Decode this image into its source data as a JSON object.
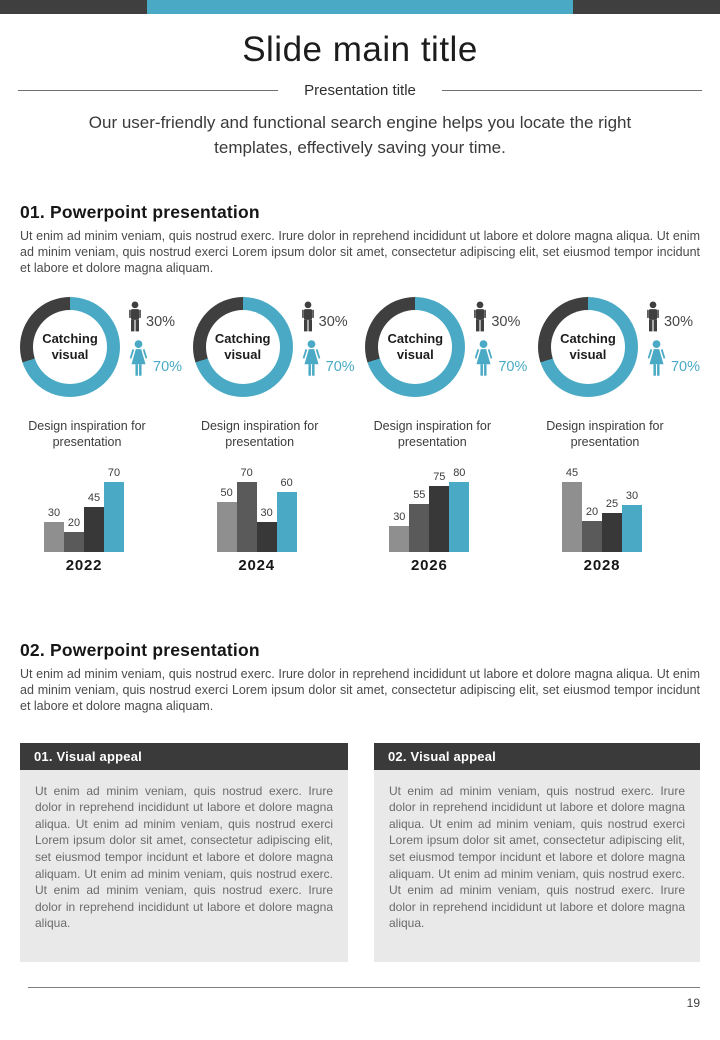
{
  "top_bar": {
    "dark_color": "#3f3f3f",
    "accent_color": "#4aaac5"
  },
  "header": {
    "title": "Slide main title",
    "subtitle": "Presentation title",
    "intro": "Our user-friendly and functional search engine helps you locate the right templates, effectively saving your time."
  },
  "section1": {
    "heading": "01. Powerpoint presentation",
    "body": "Ut enim ad minim veniam, quis nostrud exerc. Irure dolor in reprehend incididunt ut labore et dolore magna aliqua. Ut enim ad minim veniam, quis nostrud exerci  Lorem ipsum dolor sit amet, consectetur adipiscing elit, set eiusmod tempor incidunt et labore et dolore magna aliquam."
  },
  "section2": {
    "heading": "02. Powerpoint presentation",
    "body": "Ut enim ad minim veniam, quis nostrud exerc. Irure dolor in reprehend incididunt ut labore et dolore magna aliqua. Ut enim ad minim veniam, quis nostrud exerci  Lorem ipsum dolor sit amet, consectetur adipiscing elit, set eiusmod tempor incidunt et labore et dolore magna aliquam."
  },
  "stats": {
    "donut_center_label": "Catching visual",
    "male_pct": "30%",
    "female_pct": "70%",
    "caption": "Design inspiration for presentation",
    "years": [
      "2022",
      "2024",
      "2026",
      "2028"
    ]
  },
  "bar_colors": [
    "#8f8f8f",
    "#5a5a5a",
    "#383838",
    "#4aaac5"
  ],
  "chart_data": [
    {
      "type": "pie",
      "subtype": "donut",
      "center_label": "Catching visual",
      "slices": [
        {
          "label": "male",
          "value": 30,
          "color": "#3f3f3f"
        },
        {
          "label": "female",
          "value": 70,
          "color": "#4aaac5"
        }
      ],
      "note": "identical donut repeated in all four columns"
    },
    {
      "type": "bar",
      "title": "2022",
      "categories": [
        "bar1",
        "bar2",
        "bar3",
        "bar4"
      ],
      "values": [
        30,
        20,
        45,
        70
      ],
      "colors": [
        "#8f8f8f",
        "#5a5a5a",
        "#383838",
        "#4aaac5"
      ],
      "ylim": [
        0,
        70
      ]
    },
    {
      "type": "bar",
      "title": "2024",
      "categories": [
        "bar1",
        "bar2",
        "bar3",
        "bar4"
      ],
      "values": [
        50,
        70,
        30,
        60
      ],
      "colors": [
        "#8f8f8f",
        "#5a5a5a",
        "#383838",
        "#4aaac5"
      ],
      "ylim": [
        0,
        70
      ]
    },
    {
      "type": "bar",
      "title": "2026",
      "categories": [
        "bar1",
        "bar2",
        "bar3",
        "bar4"
      ],
      "values": [
        30,
        55,
        75,
        80
      ],
      "colors": [
        "#8f8f8f",
        "#5a5a5a",
        "#383838",
        "#4aaac5"
      ],
      "ylim": [
        0,
        80
      ]
    },
    {
      "type": "bar",
      "title": "2028",
      "categories": [
        "bar1",
        "bar2",
        "bar3",
        "bar4"
      ],
      "values": [
        45,
        20,
        25,
        30
      ],
      "colors": [
        "#8f8f8f",
        "#5a5a5a",
        "#383838",
        "#4aaac5"
      ],
      "ylim": [
        0,
        45
      ]
    }
  ],
  "boxes": [
    {
      "title": "01. Visual appeal",
      "body": "Ut enim ad minim veniam, quis nostrud exerc. Irure dolor in reprehend incididunt ut labore et dolore magna aliqua. Ut enim ad minim veniam, quis nostrud exerci  Lorem ipsum dolor sit amet, consectetur adipiscing elit, set eiusmod tempor incidunt et labore et dolore magna aliquam. Ut enim ad minim veniam, quis nostrud exerc. Ut enim ad minim veniam, quis nostrud exerc. Irure dolor in reprehend incididunt ut labore et dolore magna aliqua."
    },
    {
      "title": "02. Visual appeal",
      "body": "Ut enim ad minim veniam, quis nostrud exerc. Irure dolor in reprehend incididunt ut labore et dolore magna aliqua. Ut enim ad minim veniam, quis nostrud exerci  Lorem ipsum dolor sit amet, consectetur adipiscing elit, set eiusmod tempor incidunt et labore et dolore magna aliquam. Ut enim ad minim veniam, quis nostrud exerc. Ut enim ad minim veniam, quis nostrud exerc. Irure dolor in reprehend incididunt ut labore et dolore magna aliqua."
    }
  ],
  "footer": {
    "page_number": "19"
  }
}
